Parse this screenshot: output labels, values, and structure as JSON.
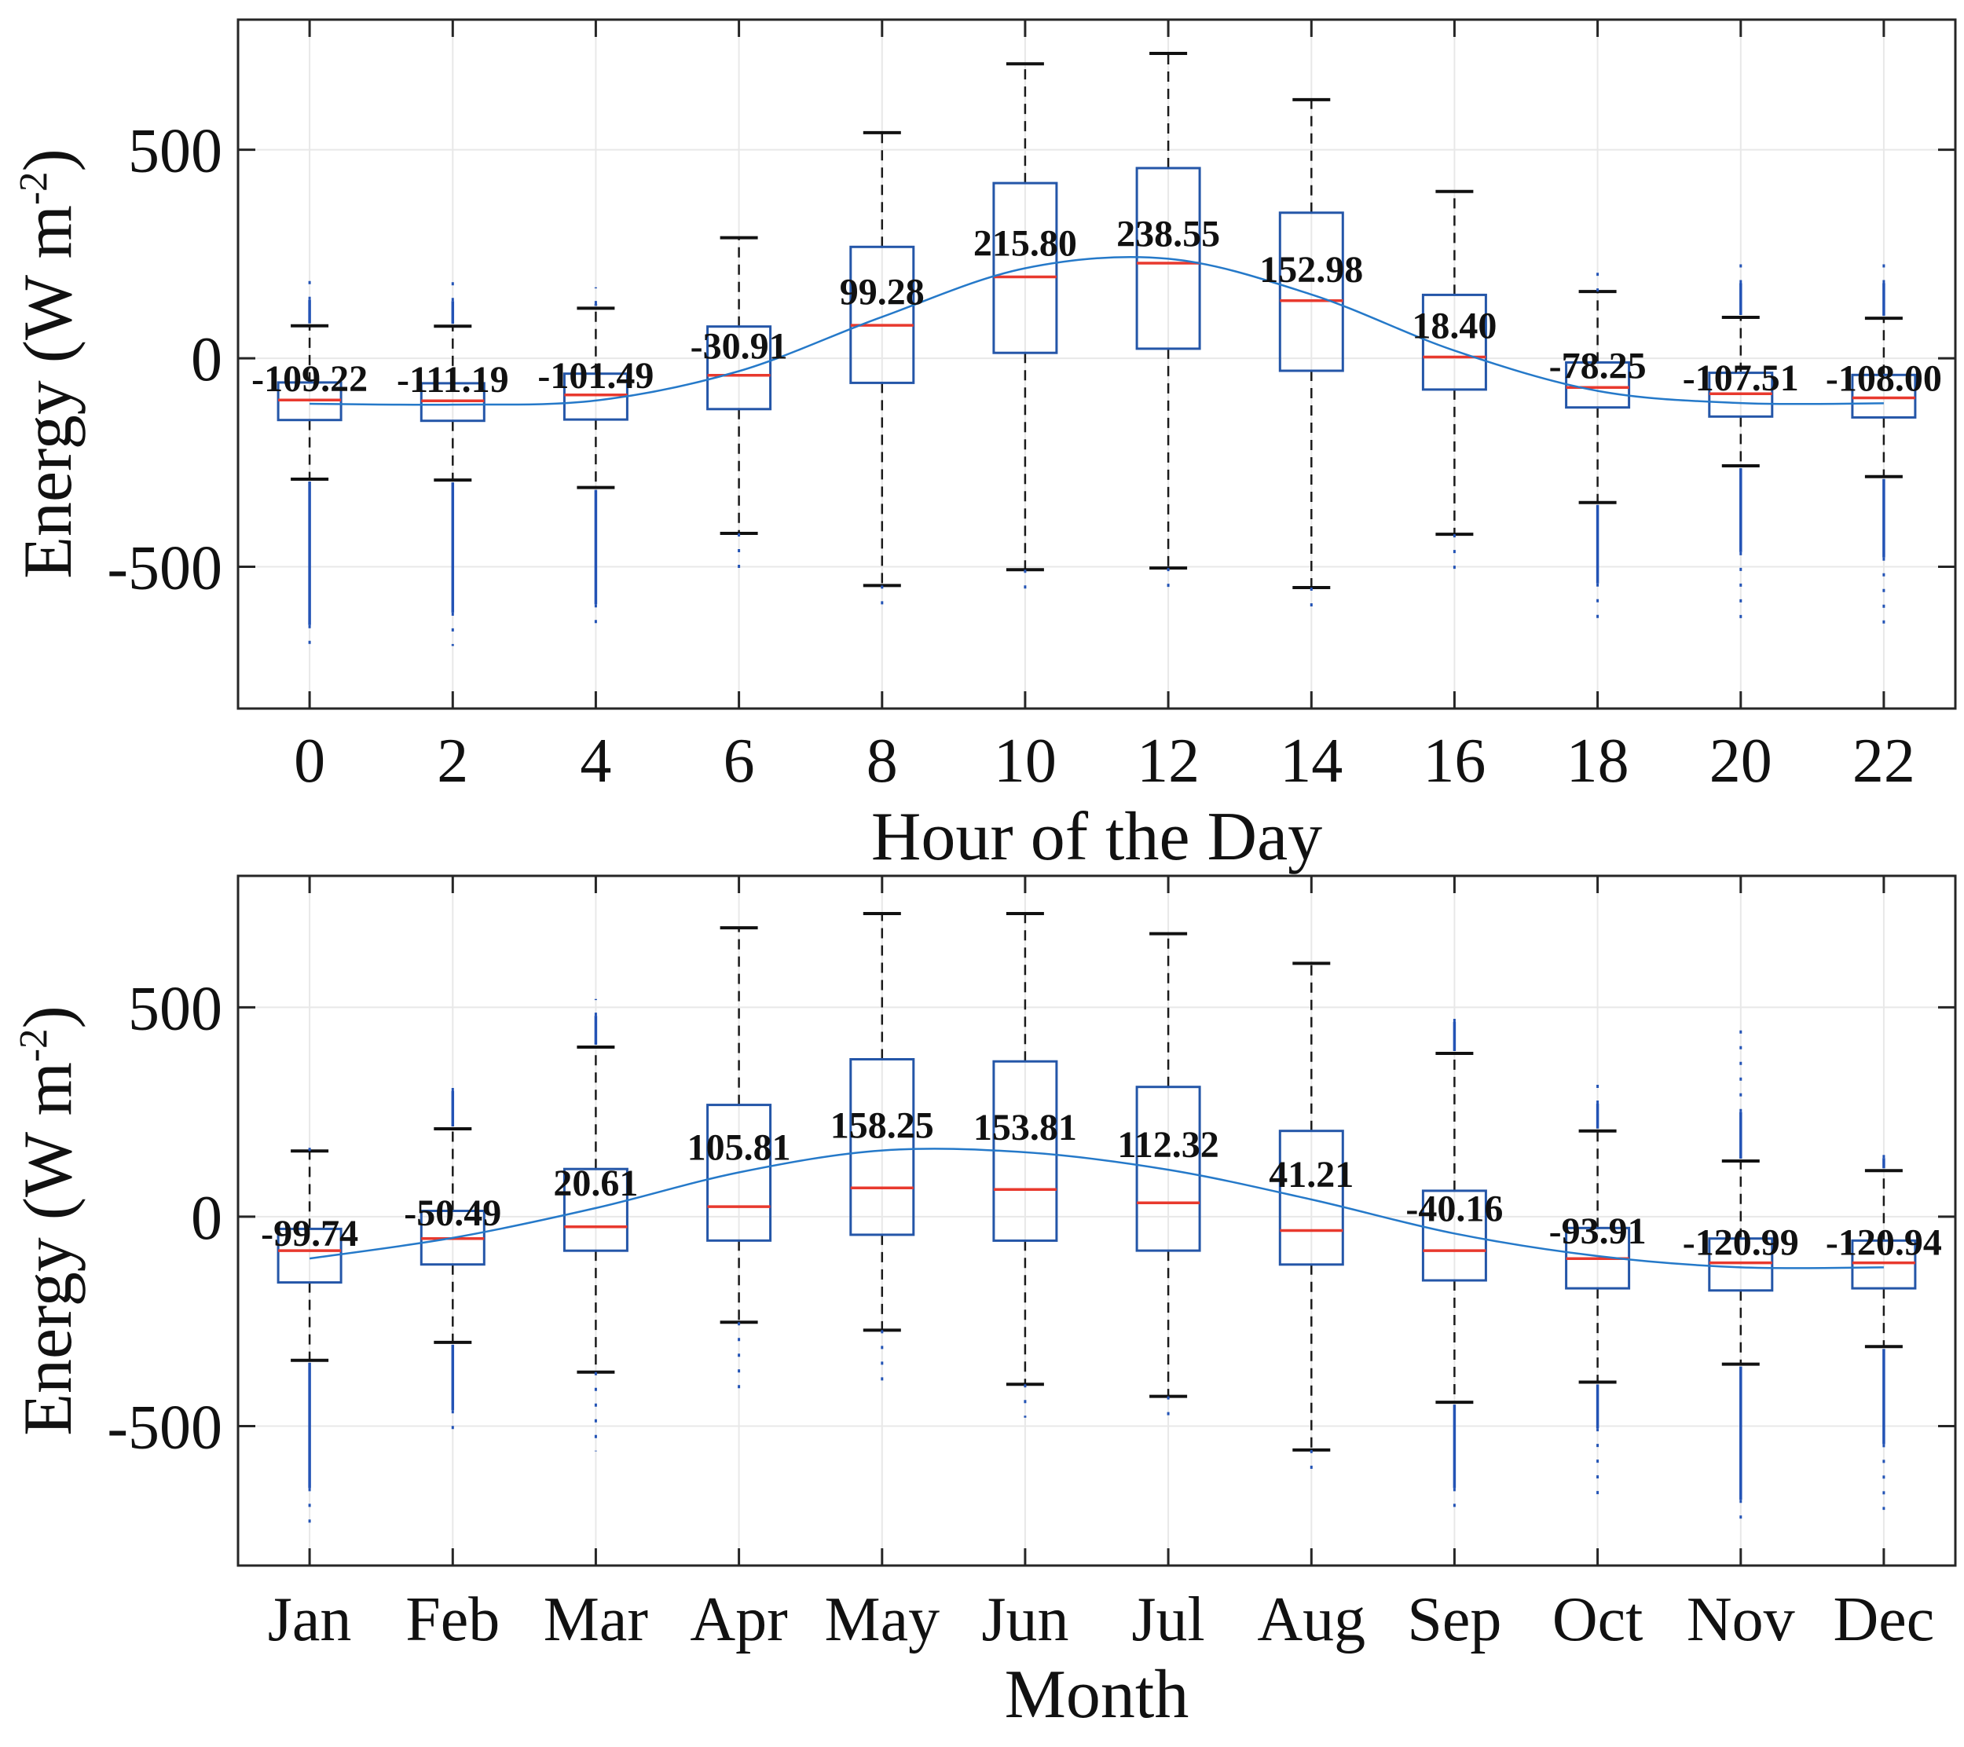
{
  "figure": {
    "background": "#ffffff",
    "colors": {
      "box_edge": "#2456A8",
      "median": "#E8392E",
      "mean_line": "#2579C9",
      "outlier": "#2353B5",
      "whisker": "#1a1a1a",
      "cap": "#111111",
      "grid": "#E8E8E8",
      "frame": "#262626",
      "text": "#111111"
    }
  },
  "chart_data": [
    {
      "type": "boxplot",
      "overlay": "mean line connecting category means, labeled with mean values",
      "title": "",
      "xlabel": "Hour of the Day",
      "ylabel": {
        "base": "Energy (W m",
        "sup": "-2",
        "close": ")",
        "text": "Energy (W m-2)"
      },
      "ylim": [
        -840,
        812
      ],
      "yticks": [
        500,
        0,
        -500
      ],
      "ytick_labels": [
        "500",
        "0",
        "-500"
      ],
      "grid": true,
      "legend": "none",
      "categories": [
        "0",
        "2",
        "4",
        "6",
        "8",
        "10",
        "12",
        "14",
        "16",
        "18",
        "20",
        "22"
      ],
      "means": [
        -109.22,
        -111.19,
        -101.49,
        -30.91,
        99.28,
        215.8,
        238.55,
        152.98,
        18.4,
        -78.25,
        -107.51,
        -108.0
      ],
      "mean_labels": [
        "-109.22",
        "-111.19",
        "-101.49",
        "-30.91",
        "99.28",
        "215.80",
        "238.55",
        "152.98",
        "18.40",
        "-78.25",
        "-107.51",
        "-108.00"
      ],
      "boxes": [
        {
          "q3": -58,
          "median": -100,
          "q1": -148,
          "whisker_high": 78,
          "whisker_low": -290,
          "outliers_high": [
            140,
            215
          ],
          "outliers_low": [
            -640,
            -700
          ]
        },
        {
          "q3": -60,
          "median": -102,
          "q1": -150,
          "whisker_high": 77,
          "whisker_low": -292,
          "outliers_high": [
            137,
            196
          ],
          "outliers_low": [
            -610,
            -690
          ]
        },
        {
          "q3": -37,
          "median": -88,
          "q1": -147,
          "whisker_high": 120,
          "whisker_low": -310,
          "outliers_high": [
            130,
            170
          ],
          "outliers_low": [
            -590,
            -665
          ]
        },
        {
          "q3": 76,
          "median": -41,
          "q1": -122,
          "whisker_high": 289,
          "whisker_low": -420,
          "outliers_high": null,
          "outliers_low": [
            -420,
            -530
          ]
        },
        {
          "q3": 267,
          "median": 79,
          "q1": -59,
          "whisker_high": 541,
          "whisker_low": -545,
          "outliers_high": null,
          "outliers_low": [
            -545,
            -620
          ]
        },
        {
          "q3": 420,
          "median": 195,
          "q1": 13,
          "whisker_high": 706,
          "whisker_low": -507,
          "outliers_high": null,
          "outliers_low": [
            -507,
            -575
          ]
        },
        {
          "q3": 456,
          "median": 228,
          "q1": 23,
          "whisker_high": 731,
          "whisker_low": -503,
          "outliers_high": null,
          "outliers_low": [
            -503,
            -570
          ]
        },
        {
          "q3": 349,
          "median": 138,
          "q1": -30,
          "whisker_high": 620,
          "whisker_low": -550,
          "outliers_high": null,
          "outliers_low": [
            -550,
            -610
          ]
        },
        {
          "q3": 152,
          "median": 3,
          "q1": -75,
          "whisker_high": 400,
          "whisker_low": -422,
          "outliers_high": null,
          "outliers_low": [
            -422,
            -505
          ]
        },
        {
          "q3": -10,
          "median": -70,
          "q1": -118,
          "whisker_high": 160,
          "whisker_low": -346,
          "outliers_high": [
            160,
            205
          ],
          "outliers_low": [
            -540,
            -645
          ]
        },
        {
          "q3": -35,
          "median": -85,
          "q1": -140,
          "whisker_high": 98,
          "whisker_low": -258,
          "outliers_high": [
            180,
            230
          ],
          "outliers_low": [
            -465,
            -640
          ]
        },
        {
          "q3": -40,
          "median": -95,
          "q1": -142,
          "whisker_high": 96,
          "whisker_low": -284,
          "outliers_high": [
            180,
            230
          ],
          "outliers_low": [
            -478,
            -644
          ]
        }
      ]
    },
    {
      "type": "boxplot",
      "overlay": "mean line connecting category means, labeled with mean values",
      "title": "",
      "xlabel": "Month",
      "ylabel": {
        "base": "Energy (W m",
        "sup": "-2",
        "close": ")",
        "text": "Energy (W m-2)"
      },
      "ylim": [
        -833,
        814
      ],
      "yticks": [
        500,
        0,
        -500
      ],
      "ytick_labels": [
        "500",
        "0",
        "-500"
      ],
      "grid": true,
      "legend": "none",
      "categories": [
        "Jan",
        "Feb",
        "Mar",
        "Apr",
        "May",
        "Jun",
        "Jul",
        "Aug",
        "Sep",
        "Oct",
        "Nov",
        "Dec"
      ],
      "means": [
        -99.74,
        -50.49,
        20.61,
        105.81,
        158.25,
        153.81,
        112.32,
        41.21,
        -40.16,
        -93.91,
        -120.99,
        -120.94
      ],
      "mean_labels": [
        "-99.74",
        "-50.49",
        "20.61",
        "105.81",
        "158.25",
        "153.81",
        "112.32",
        "41.21",
        "-40.16",
        "-93.91",
        "-120.99",
        "-120.94"
      ],
      "boxes": [
        {
          "q3": -29,
          "median": -81,
          "q1": -157,
          "whisker_high": 157,
          "whisker_low": -343,
          "outliers_high": [
            157,
            175
          ],
          "outliers_low": [
            -648,
            -745
          ]
        },
        {
          "q3": 14,
          "median": -52,
          "q1": -114,
          "whisker_high": 210,
          "whisker_low": -300,
          "outliers_high": [
            300,
            335
          ],
          "outliers_low": [
            -462,
            -525
          ]
        },
        {
          "q3": 114,
          "median": -24,
          "q1": -81,
          "whisker_high": 405,
          "whisker_low": -371,
          "outliers_high": [
            480,
            520
          ],
          "outliers_low": [
            -371,
            -560
          ]
        },
        {
          "q3": 267,
          "median": 24,
          "q1": -57,
          "whisker_high": 690,
          "whisker_low": -252,
          "outliers_high": null,
          "outliers_low": [
            -252,
            -430
          ]
        },
        {
          "q3": 376,
          "median": 69,
          "q1": -43,
          "whisker_high": 724,
          "whisker_low": -271,
          "outliers_high": null,
          "outliers_low": [
            -271,
            -410
          ]
        },
        {
          "q3": 371,
          "median": 65,
          "q1": -57,
          "whisker_high": 724,
          "whisker_low": -400,
          "outliers_high": null,
          "outliers_low": [
            -400,
            -480
          ]
        },
        {
          "q3": 310,
          "median": 33,
          "q1": -81,
          "whisker_high": 676,
          "whisker_low": -429,
          "outliers_high": null,
          "outliers_low": [
            -429,
            -500
          ]
        },
        {
          "q3": 205,
          "median": -33,
          "q1": -114,
          "whisker_high": 605,
          "whisker_low": -557,
          "outliers_high": null,
          "outliers_low": [
            -557,
            -620
          ]
        },
        {
          "q3": 62,
          "median": -81,
          "q1": -152,
          "whisker_high": 390,
          "whisker_low": -443,
          "outliers_high": [
            465,
            500
          ],
          "outliers_low": [
            -648,
            -705
          ]
        },
        {
          "q3": -27,
          "median": -100,
          "q1": -171,
          "whisker_high": 205,
          "whisker_low": -395,
          "outliers_high": [
            270,
            335
          ],
          "outliers_low": [
            -505,
            -685
          ]
        },
        {
          "q3": -52,
          "median": -110,
          "q1": -176,
          "whisker_high": 133,
          "whisker_low": -352,
          "outliers_high": [
            250,
            470
          ],
          "outliers_low": [
            -676,
            -725
          ]
        },
        {
          "q3": -57,
          "median": -110,
          "q1": -171,
          "whisker_high": 110,
          "whisker_low": -310,
          "outliers_high": [
            140,
            160
          ],
          "outliers_low": [
            -543,
            -700
          ]
        }
      ]
    }
  ]
}
